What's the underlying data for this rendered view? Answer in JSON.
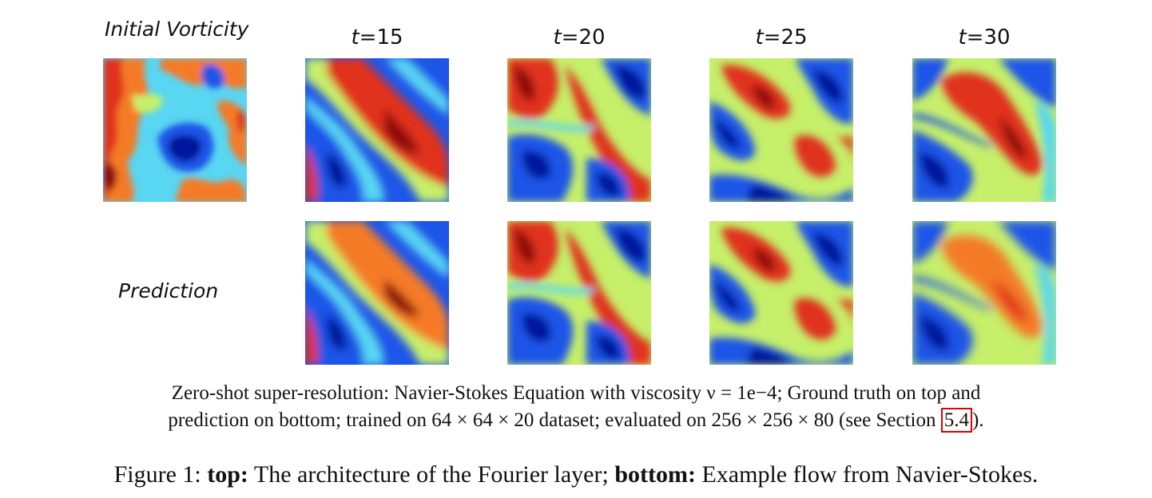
{
  "labels": {
    "initial": "Initial Vorticity",
    "prediction": "Prediction"
  },
  "time_labels": [
    {
      "prefix": "t",
      "value": "=15"
    },
    {
      "prefix": "t",
      "value": "=20"
    },
    {
      "prefix": "t",
      "value": "=25"
    },
    {
      "prefix": "t",
      "value": "=30"
    }
  ],
  "colors": {
    "deep_blue": "#00199b",
    "blue": "#1f55e8",
    "cyan": "#58d6f2",
    "yellow_green": "#c6ef6a",
    "orange": "#f47a26",
    "red": "#e0321a",
    "dark_red": "#8e0c0c"
  },
  "caption": {
    "line1": "Zero-shot super-resolution: Navier-Stokes Equation with viscosity ν = 1e−4; Ground truth on top and",
    "line2_before": "prediction on bottom; trained on 64 × 64 × 20 dataset; evaluated on 256 × 256 × 80 (see Section ",
    "line2_link": "5.4",
    "line2_after": ")."
  },
  "figure": {
    "number": "Figure 1:",
    "top_label": "top:",
    "top_text": "The architecture of the Fourier layer;",
    "bottom_label": "bottom:",
    "bottom_text": "Example flow from Navier-Stokes."
  }
}
